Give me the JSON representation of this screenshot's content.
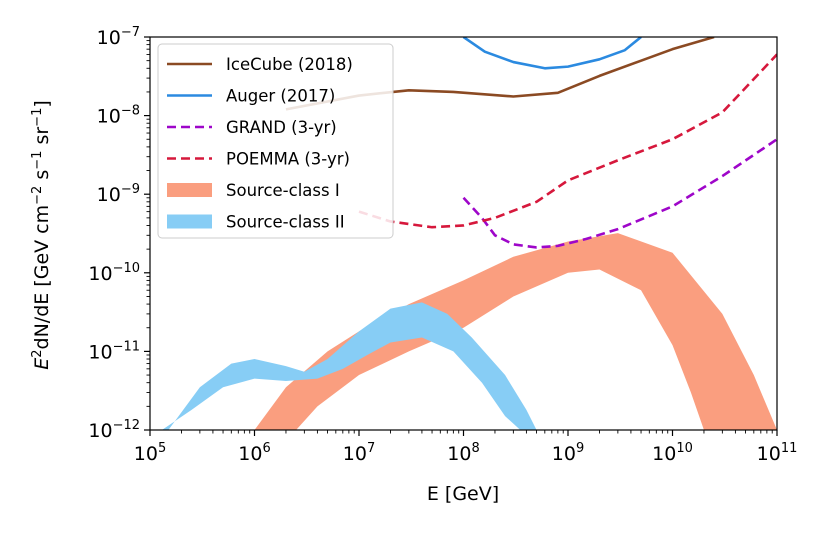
{
  "chart_data": {
    "type": "line",
    "xscale": "log",
    "yscale": "log",
    "xlim": [
      100000,
      100000000000
    ],
    "ylim": [
      1e-12,
      1e-07
    ],
    "xlabel": "E [GeV]",
    "ylabel": {
      "prefix": "E",
      "exp": "2",
      "mid": "dN/dE [GeV cm",
      "exp_cm": "−2",
      "mid2": " s",
      "exp_s": "−1",
      "mid3": " sr",
      "exp_sr": "−1",
      "suffix": "]"
    },
    "xticks": [
      {
        "value": 100000,
        "base": "10",
        "exp": "5"
      },
      {
        "value": 1000000,
        "base": "10",
        "exp": "6"
      },
      {
        "value": 10000000,
        "base": "10",
        "exp": "7"
      },
      {
        "value": 100000000,
        "base": "10",
        "exp": "8"
      },
      {
        "value": 1000000000,
        "base": "10",
        "exp": "9"
      },
      {
        "value": 10000000000,
        "base": "10",
        "exp": "10"
      },
      {
        "value": 100000000000,
        "base": "10",
        "exp": "11"
      }
    ],
    "yticks": [
      {
        "value": 1e-12,
        "base": "10",
        "exp": "−12"
      },
      {
        "value": 1e-11,
        "base": "10",
        "exp": "−11"
      },
      {
        "value": 1e-10,
        "base": "10",
        "exp": "−10"
      },
      {
        "value": 1e-09,
        "base": "10",
        "exp": "−9"
      },
      {
        "value": 1e-08,
        "base": "10",
        "exp": "−8"
      },
      {
        "value": 1e-07,
        "base": "10",
        "exp": "−7"
      }
    ],
    "legend_position": "upper-left",
    "series": [
      {
        "name": "IceCube (2018)",
        "kind": "line",
        "color": "#8b4a23",
        "dash": "solid",
        "x": [
          2000000.0,
          10000000.0,
          30000000.0,
          80000000.0,
          300000000.0,
          800000000.0,
          2000000000.0,
          5000000000.0,
          10000000000.0,
          25000000000.0
        ],
        "y": [
          1.2e-08,
          1.8e-08,
          2.1e-08,
          2e-08,
          1.75e-08,
          1.95e-08,
          3.2e-08,
          5e-08,
          7e-08,
          1e-07
        ]
      },
      {
        "name": "Auger (2017)",
        "kind": "line",
        "color": "#2b8ae0",
        "dash": "solid",
        "x": [
          100000000.0,
          160000000.0,
          300000000.0,
          600000000.0,
          1000000000.0,
          2000000000.0,
          3500000000.0,
          5000000000.0
        ],
        "y": [
          1e-07,
          6.5e-08,
          4.8e-08,
          4e-08,
          4.2e-08,
          5.2e-08,
          6.8e-08,
          1e-07
        ]
      },
      {
        "name": "GRAND (3-yr)",
        "kind": "dashed",
        "color": "#9e06c9",
        "dash": "dashed",
        "x": [
          100000000.0,
          150000000.0,
          200000000.0,
          300000000.0,
          500000000.0,
          800000000.0,
          1500000000.0,
          3000000000.0,
          10000000000.0,
          30000000000.0,
          100000000000.0
        ],
        "y": [
          9e-10,
          5e-10,
          3e-10,
          2.3e-10,
          2.1e-10,
          2.2e-10,
          2.7e-10,
          3.6e-10,
          7e-10,
          1.7e-09,
          5e-09
        ]
      },
      {
        "name": "POEMMA (3-yr)",
        "kind": "dashed",
        "color": "#d6183c",
        "dash": "dashed",
        "x": [
          10000000.0,
          20000000.0,
          50000000.0,
          100000000.0,
          200000000.0,
          500000000.0,
          1000000000.0,
          3000000000.0,
          10000000000.0,
          30000000000.0,
          100000000000.0
        ],
        "y": [
          6e-10,
          4.5e-10,
          3.8e-10,
          4e-10,
          5e-10,
          8e-10,
          1.5e-09,
          2.7e-09,
          5e-09,
          1.1e-08,
          6e-08
        ]
      },
      {
        "name": "Source-class I",
        "kind": "band",
        "color": "#fa9e7f",
        "x": [
          1000000.0,
          3000000.0,
          10000000.0,
          30000000.0,
          100000000.0,
          300000000.0,
          1000000000.0,
          3000000000.0,
          10000000000.0,
          20000000000.0,
          50000000000.0,
          100000000000.0
        ],
        "y_low": [
          1e-12,
          1e-12,
          1e-12,
          1e-12,
          1e-12,
          1e-12,
          1e-12,
          1e-12,
          1e-12,
          1e-12,
          1e-12,
          1e-12
        ],
        "y_high": [
          1e-12,
          1e-12,
          1e-12,
          1e-12,
          1e-12,
          1e-12,
          1e-12,
          1e-12,
          1e-12,
          1e-12,
          1e-12,
          1e-12
        ],
        "lower": {
          "x": [
            2500000.0,
            4000000.0,
            10000000.0,
            30000000.0,
            100000000.0,
            300000000.0,
            1000000000.0,
            2000000000.0,
            5000000000.0,
            10000000000.0,
            15000000000.0,
            20000000000.0
          ],
          "y": [
            1e-12,
            2e-12,
            5e-12,
            1e-11,
            2e-11,
            5e-11,
            1e-10,
            1.1e-10,
            6e-11,
            1.2e-11,
            3e-12,
            1e-12
          ]
        },
        "upper": {
          "x": [
            1000000.0,
            2000000.0,
            5000000.0,
            10000000.0,
            30000000.0,
            100000000.0,
            300000000.0,
            1000000000.0,
            3000000000.0,
            10000000000.0,
            30000000000.0,
            60000000000.0,
            100000000000.0
          ],
          "y": [
            1e-12,
            3.5e-12,
            1e-11,
            1.8e-11,
            4e-11,
            8e-11,
            1.6e-10,
            2.5e-10,
            3.2e-10,
            1.8e-10,
            3e-11,
            5e-12,
            1e-12
          ]
        }
      },
      {
        "name": "Source-class II",
        "kind": "band",
        "color": "#87cdf5",
        "lower": {
          "x": [
            130000.0,
            250000.0,
            500000.0,
            1000000.0,
            2000000.0,
            4000000.0,
            7000000.0,
            12000000.0,
            20000000.0,
            40000000.0,
            80000000.0,
            150000000.0,
            250000000.0,
            350000000.0
          ],
          "y": [
            1e-12,
            1.8e-12,
            3.5e-12,
            4.5e-12,
            4.2e-12,
            4.5e-12,
            6e-12,
            9e-12,
            1.3e-11,
            1.5e-11,
            1e-11,
            4e-12,
            1.5e-12,
            1e-12
          ]
        },
        "upper": {
          "x": [
            150000.0,
            300000.0,
            600000.0,
            1000000.0,
            2000000.0,
            3000000.0,
            5000000.0,
            10000000.0,
            20000000.0,
            40000000.0,
            70000000.0,
            120000000.0,
            250000000.0,
            400000000.0,
            500000000.0
          ],
          "y": [
            1e-12,
            3.5e-12,
            7e-12,
            8e-12,
            6.5e-12,
            5.5e-12,
            8e-12,
            1.8e-11,
            3.5e-11,
            4.2e-11,
            3e-11,
            1.5e-11,
            5e-12,
            1.8e-12,
            1e-12
          ]
        }
      }
    ]
  }
}
